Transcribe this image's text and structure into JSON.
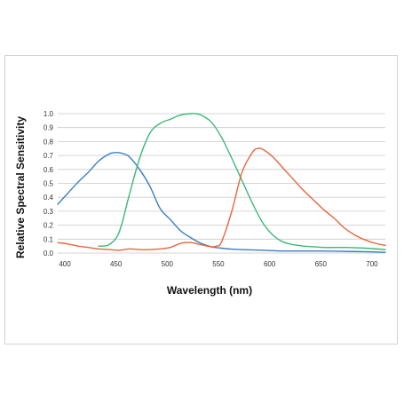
{
  "chart_data": {
    "type": "line",
    "xlabel": "Wavelength (nm)",
    "ylabel": "Relative Spectral Sensitivity",
    "xlim": [
      400,
      720
    ],
    "ylim": [
      0,
      1.0
    ],
    "x_ticks": [
      "400",
      "450",
      "500",
      "550",
      "600",
      "650",
      "700"
    ],
    "y_ticks": [
      "0.0",
      "0.1",
      "0.2",
      "0.3",
      "0.4",
      "0.5",
      "0.6",
      "0.7",
      "0.8",
      "0.9",
      "1.0"
    ],
    "grid": "horizontal",
    "series": [
      {
        "color": "#3a7ec4",
        "x": [
          400,
          410,
          420,
          430,
          440,
          450,
          455,
          460,
          465,
          470,
          480,
          490,
          500,
          510,
          520,
          530,
          540,
          550,
          560,
          570,
          580,
          600,
          620,
          640,
          660,
          680,
          700,
          720
        ],
        "y": [
          0.35,
          0.43,
          0.51,
          0.58,
          0.66,
          0.71,
          0.72,
          0.72,
          0.71,
          0.69,
          0.6,
          0.48,
          0.32,
          0.24,
          0.16,
          0.11,
          0.07,
          0.045,
          0.035,
          0.028,
          0.025,
          0.02,
          0.015,
          0.015,
          0.015,
          0.012,
          0.01,
          0.005
        ]
      },
      {
        "color": "#3cb878",
        "x": [
          400,
          410,
          420,
          430,
          440,
          450,
          460,
          470,
          480,
          490,
          500,
          510,
          520,
          530,
          535,
          540,
          550,
          560,
          570,
          580,
          590,
          600,
          610,
          620,
          630,
          640,
          650,
          660,
          670,
          680,
          700,
          720
        ],
        "y": [
          null,
          null,
          null,
          null,
          0.05,
          0.06,
          0.15,
          0.42,
          0.68,
          0.86,
          0.93,
          0.96,
          0.99,
          1.0,
          1.0,
          0.99,
          0.94,
          0.83,
          0.68,
          0.52,
          0.36,
          0.22,
          0.13,
          0.08,
          0.06,
          0.05,
          0.045,
          0.04,
          0.04,
          0.04,
          0.035,
          0.025
        ]
      },
      {
        "color": "#e8653e",
        "x": [
          400,
          410,
          420,
          430,
          440,
          450,
          460,
          470,
          480,
          490,
          500,
          510,
          520,
          530,
          540,
          550,
          555,
          560,
          570,
          580,
          590,
          595,
          600,
          610,
          620,
          630,
          640,
          650,
          660,
          670,
          680,
          690,
          700,
          710,
          720
        ],
        "y": [
          0.075,
          0.065,
          0.05,
          0.04,
          0.03,
          0.025,
          0.02,
          0.03,
          0.025,
          0.025,
          0.03,
          0.04,
          0.07,
          0.075,
          0.06,
          0.045,
          0.05,
          0.08,
          0.3,
          0.58,
          0.72,
          0.75,
          0.745,
          0.69,
          0.61,
          0.53,
          0.45,
          0.38,
          0.31,
          0.25,
          0.18,
          0.13,
          0.095,
          0.07,
          0.055
        ]
      }
    ]
  }
}
